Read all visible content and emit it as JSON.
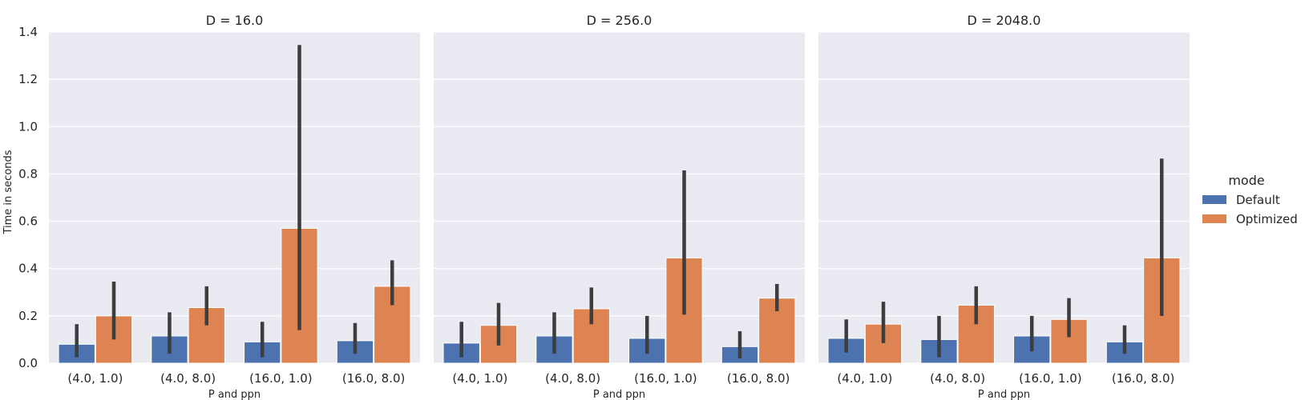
{
  "chart_data": {
    "type": "bar",
    "ylabel": "Time in seconds",
    "xlabel": "P and ppn",
    "ylim": [
      0,
      1.4
    ],
    "yticks": [
      "0.0",
      "0.2",
      "0.4",
      "0.6",
      "0.8",
      "1.0",
      "1.2",
      "1.4"
    ],
    "categories": [
      "(4.0, 1.0)",
      "(4.0, 8.0)",
      "(16.0, 1.0)",
      "(16.0, 8.0)"
    ],
    "grid": true,
    "legend": {
      "title": "mode",
      "placement": "right",
      "entries": [
        "Default",
        "Optimized"
      ]
    },
    "colors": {
      "Default": "#4c72b0",
      "Optimized": "#dd8452",
      "panel_bg": "#eaeaf2",
      "grid": "#ffffff",
      "errorbar": "#3d3d3d"
    },
    "panels": [
      {
        "title": "D = 16.0",
        "series": [
          {
            "name": "Default",
            "values": [
              0.08,
              0.115,
              0.09,
              0.095
            ],
            "err_low": [
              0.025,
              0.04,
              0.025,
              0.04
            ],
            "err_high": [
              0.165,
              0.215,
              0.175,
              0.17
            ]
          },
          {
            "name": "Optimized",
            "values": [
              0.2,
              0.235,
              0.57,
              0.325
            ],
            "err_low": [
              0.1,
              0.16,
              0.14,
              0.245
            ],
            "err_high": [
              0.345,
              0.325,
              1.345,
              0.435
            ]
          }
        ]
      },
      {
        "title": "D = 256.0",
        "series": [
          {
            "name": "Default",
            "values": [
              0.085,
              0.115,
              0.105,
              0.07
            ],
            "err_low": [
              0.025,
              0.04,
              0.04,
              0.02
            ],
            "err_high": [
              0.175,
              0.215,
              0.2,
              0.135
            ]
          },
          {
            "name": "Optimized",
            "values": [
              0.16,
              0.23,
              0.445,
              0.275
            ],
            "err_low": [
              0.075,
              0.165,
              0.205,
              0.22
            ],
            "err_high": [
              0.255,
              0.32,
              0.815,
              0.335
            ]
          }
        ]
      },
      {
        "title": "D = 2048.0",
        "series": [
          {
            "name": "Default",
            "values": [
              0.105,
              0.1,
              0.115,
              0.09
            ],
            "err_low": [
              0.045,
              0.025,
              0.05,
              0.04
            ],
            "err_high": [
              0.185,
              0.2,
              0.2,
              0.16
            ]
          },
          {
            "name": "Optimized",
            "values": [
              0.165,
              0.245,
              0.185,
              0.445
            ],
            "err_low": [
              0.085,
              0.165,
              0.11,
              0.2
            ],
            "err_high": [
              0.26,
              0.325,
              0.275,
              0.865
            ]
          }
        ]
      }
    ]
  }
}
